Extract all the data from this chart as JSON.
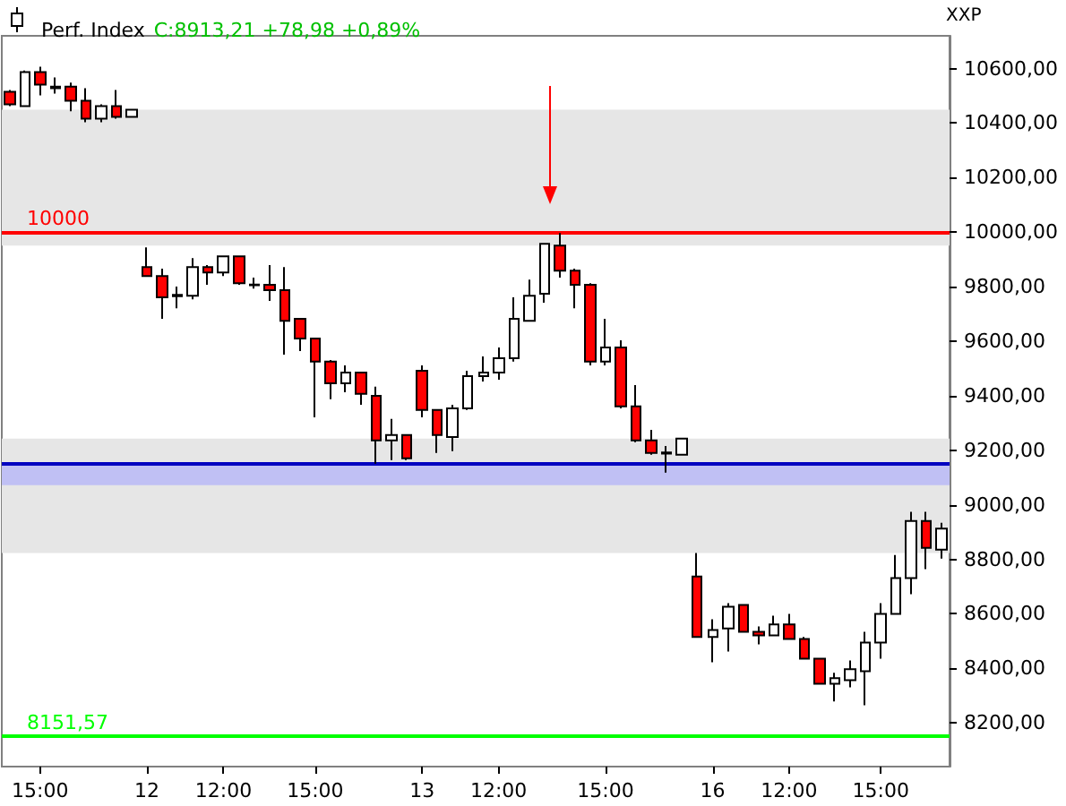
{
  "chart_data": {
    "type": "candlestick",
    "title": "Perf. Index",
    "subtitle": "C:8913,21 +78,98 +0,89%",
    "ylabel": "XXP",
    "categories": [
      null,
      null,
      "15:00",
      null,
      null,
      null,
      null,
      null,
      null,
      "12",
      null,
      null,
      null,
      null,
      "12:00",
      null,
      null,
      null,
      null,
      null,
      "15:00",
      null,
      null,
      null,
      null,
      null,
      null,
      "13",
      null,
      null,
      null,
      null,
      "12:00",
      null,
      null,
      null,
      null,
      null,
      null,
      "15:00",
      null,
      null,
      null,
      null,
      null,
      null,
      "16",
      null,
      null,
      null,
      null,
      "12:00",
      null,
      null,
      null,
      null,
      null,
      "15:00",
      null,
      null,
      null,
      null
    ],
    "ohlc": [
      [
        10515,
        10521,
        10462,
        10469
      ],
      [
        10462,
        10593,
        10462,
        10587
      ],
      [
        10587,
        10607,
        10502,
        10541
      ],
      [
        10528,
        10567,
        10508,
        10534
      ],
      [
        10534,
        10548,
        10443,
        10482
      ],
      [
        10482,
        10528,
        10403,
        10416
      ],
      [
        10416,
        10469,
        10403,
        10462
      ],
      [
        10462,
        10521,
        10416,
        10423
      ],
      [
        10423,
        10449,
        10423,
        10449
      ],
      [
        9872,
        9944,
        9839,
        9839
      ],
      [
        9839,
        9866,
        9682,
        9761
      ],
      [
        9765,
        9800,
        9721,
        9770
      ],
      [
        9767,
        9905,
        9754,
        9872
      ],
      [
        9872,
        9879,
        9807,
        9852
      ],
      [
        9852,
        9911,
        9839,
        9911
      ],
      [
        9911,
        9911,
        9807,
        9813
      ],
      [
        9805,
        9833,
        9793,
        9808
      ],
      [
        9807,
        9879,
        9748,
        9787
      ],
      [
        9787,
        9872,
        9551,
        9675
      ],
      [
        9682,
        9682,
        9564,
        9610
      ],
      [
        9610,
        9610,
        9321,
        9525
      ],
      [
        9525,
        9531,
        9387,
        9446
      ],
      [
        9446,
        9511,
        9413,
        9485
      ],
      [
        9485,
        9485,
        9367,
        9407
      ],
      [
        9400,
        9433,
        9151,
        9236
      ],
      [
        9236,
        9315,
        9164,
        9256
      ],
      [
        9256,
        9256,
        9164,
        9171
      ],
      [
        9492,
        9511,
        9321,
        9348
      ],
      [
        9348,
        9348,
        9190,
        9256
      ],
      [
        9249,
        9367,
        9197,
        9354
      ],
      [
        9354,
        9492,
        9348,
        9472
      ],
      [
        9472,
        9544,
        9452,
        9485
      ],
      [
        9485,
        9577,
        9459,
        9538
      ],
      [
        9538,
        9761,
        9525,
        9682
      ],
      [
        9675,
        9826,
        9675,
        9767
      ],
      [
        9774,
        9957,
        9741,
        9957
      ],
      [
        9951,
        9997,
        9833,
        9859
      ],
      [
        9859,
        9866,
        9721,
        9807
      ],
      [
        9807,
        9813,
        9511,
        9525
      ],
      [
        9525,
        9682,
        9511,
        9577
      ],
      [
        9577,
        9603,
        9354,
        9361
      ],
      [
        9361,
        9439,
        9230,
        9236
      ],
      [
        9236,
        9275,
        9184,
        9190
      ],
      [
        9188,
        9216,
        9118,
        9192
      ],
      [
        9184,
        9243,
        9184,
        9243
      ],
      [
        8737,
        8823,
        8515,
        8515
      ],
      [
        8515,
        8580,
        8423,
        8541
      ],
      [
        8547,
        8639,
        8462,
        8626
      ],
      [
        8633,
        8633,
        8534,
        8534
      ],
      [
        8534,
        8554,
        8488,
        8521
      ],
      [
        8521,
        8593,
        8521,
        8561
      ],
      [
        8561,
        8600,
        8508,
        8508
      ],
      [
        8508,
        8515,
        8436,
        8436
      ],
      [
        8436,
        8436,
        8344,
        8344
      ],
      [
        8344,
        8384,
        8279,
        8364
      ],
      [
        8357,
        8429,
        8331,
        8397
      ],
      [
        8390,
        8534,
        8265,
        8495
      ],
      [
        8495,
        8639,
        8436,
        8600
      ],
      [
        8600,
        8816,
        8600,
        8731
      ],
      [
        8731,
        8974,
        8672,
        8941
      ],
      [
        8941,
        8974,
        8764,
        8842
      ],
      [
        8836,
        8934,
        8803,
        8913.21
      ]
    ],
    "colors": [
      "#ff0000",
      "#ffffff",
      "#ff0000",
      "#ffffff",
      "#ff0000",
      "#ff0000",
      "#ffffff",
      "#ff0000",
      "#ffffff",
      "#ff0000",
      "#ff0000",
      "#ffffff",
      "#ffffff",
      "#ff0000",
      "#ffffff",
      "#ff0000",
      "#ffffff",
      "#ff0000",
      "#ff0000",
      "#ff0000",
      "#ff0000",
      "#ff0000",
      "#ffffff",
      "#ff0000",
      "#ff0000",
      "#ffffff",
      "#ff0000",
      "#ff0000",
      "#ff0000",
      "#ffffff",
      "#ffffff",
      "#ffffff",
      "#ffffff",
      "#ffffff",
      "#ffffff",
      "#ffffff",
      "#ff0000",
      "#ff0000",
      "#ff0000",
      "#ffffff",
      "#ff0000",
      "#ff0000",
      "#ff0000",
      "#ffffff",
      "#ffffff",
      "#ff0000",
      "#ffffff",
      "#ffffff",
      "#ff0000",
      "#ff0000",
      "#ffffff",
      "#ff0000",
      "#ff0000",
      "#ff0000",
      "#ffffff",
      "#ffffff",
      "#ffffff",
      "#ffffff",
      "#ffffff",
      "#ffffff",
      "#ff0000",
      "#ffffff"
    ],
    "ylim": [
      8040,
      10720
    ],
    "yticks": [
      {
        "value": 8200,
        "label": "8200,00"
      },
      {
        "value": 8400,
        "label": "8400,00"
      },
      {
        "value": 8600,
        "label": "8600,00"
      },
      {
        "value": 8800,
        "label": "8800,00"
      },
      {
        "value": 9000,
        "label": "9000,00"
      },
      {
        "value": 9200,
        "label": "9200,00"
      },
      {
        "value": 9400,
        "label": "9400,00"
      },
      {
        "value": 9600,
        "label": "9600,00"
      },
      {
        "value": 9800,
        "label": "9800,00"
      },
      {
        "value": 10000,
        "label": "10000,00"
      },
      {
        "value": 10200,
        "label": "10200,00"
      },
      {
        "value": 10400,
        "label": "10400,00"
      },
      {
        "value": 10600,
        "label": "10600,00"
      }
    ],
    "ref_lines": [
      {
        "axis": "y",
        "value": 10000,
        "label": "10000",
        "color": "#ff0000"
      },
      {
        "axis": "y",
        "value": 8151.57,
        "label": "8151,57",
        "color": "#00ff00"
      },
      {
        "axis": "y",
        "value": 9151,
        "label": null,
        "color": "#0000c0"
      }
    ],
    "bands": [
      {
        "axis": "y",
        "from": 9951,
        "to": 10449,
        "label": null,
        "color": "#e6e6e6"
      },
      {
        "axis": "y",
        "from": 8823,
        "to": 9243,
        "label": null,
        "color": "#e6e6e6"
      },
      {
        "axis": "y",
        "from": 9072,
        "to": 9151,
        "label": null,
        "color": "#c0c0f4"
      }
    ],
    "grid": false
  }
}
